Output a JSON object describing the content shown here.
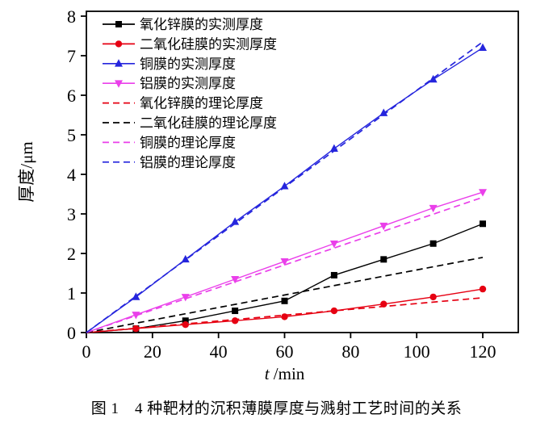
{
  "caption": "图 1　4 种靶材的沉积薄膜厚度与溅射工艺时间的关系",
  "axes": {
    "x_label_italic": "t",
    "x_label_rest": " /min",
    "y_label": "厚度/μm"
  },
  "chart_data": {
    "type": "line",
    "title": "",
    "xlabel": "t /min",
    "ylabel": "厚度/μm",
    "xlim": [
      0,
      120
    ],
    "ylim": [
      0,
      8
    ],
    "x_ticks": [
      0,
      20,
      40,
      60,
      80,
      100,
      120
    ],
    "y_ticks": [
      0,
      1,
      2,
      3,
      4,
      5,
      6,
      7,
      8
    ],
    "grid": false,
    "legend_position": "upper-left",
    "x": [
      0,
      15,
      30,
      45,
      60,
      75,
      90,
      105,
      120
    ],
    "series": [
      {
        "name": "氧化锌膜的实测厚度",
        "color": "#000000",
        "style": "solid",
        "marker": "square",
        "values": [
          0,
          0.1,
          0.3,
          0.55,
          0.8,
          1.45,
          1.85,
          2.25,
          2.75
        ]
      },
      {
        "name": "二氧化硅膜的实测厚度",
        "color": "#e60012",
        "style": "solid",
        "marker": "circle",
        "values": [
          0,
          0.1,
          0.2,
          0.3,
          0.4,
          0.55,
          0.72,
          0.9,
          1.1
        ]
      },
      {
        "name": "铜膜的实测厚度",
        "color": "#2525dd",
        "style": "solid",
        "marker": "triangle-up",
        "values": [
          0,
          0.9,
          1.85,
          2.8,
          3.7,
          4.65,
          5.55,
          6.4,
          7.2
        ]
      },
      {
        "name": "铝膜的实测厚度",
        "color": "#ea3fea",
        "style": "solid",
        "marker": "triangle-down",
        "values": [
          0,
          0.45,
          0.9,
          1.35,
          1.8,
          2.25,
          2.7,
          3.15,
          3.55
        ]
      },
      {
        "name": "氧化锌膜的理论厚度",
        "color": "#e60012",
        "style": "dashed",
        "marker": null,
        "x": [
          0,
          120
        ],
        "values": [
          0,
          0.88
        ]
      },
      {
        "name": "二氧化硅膜的理论厚度",
        "color": "#000000",
        "style": "dashed",
        "marker": null,
        "x": [
          0,
          120
        ],
        "values": [
          0,
          1.9
        ]
      },
      {
        "name": "铜膜的理论厚度",
        "color": "#ea3fea",
        "style": "dashed",
        "marker": null,
        "x": [
          0,
          120
        ],
        "values": [
          0,
          3.42
        ]
      },
      {
        "name": "铝膜的理论厚度",
        "color": "#2525dd",
        "style": "dashed",
        "marker": null,
        "x": [
          0,
          120
        ],
        "values": [
          0,
          7.35
        ]
      }
    ]
  }
}
